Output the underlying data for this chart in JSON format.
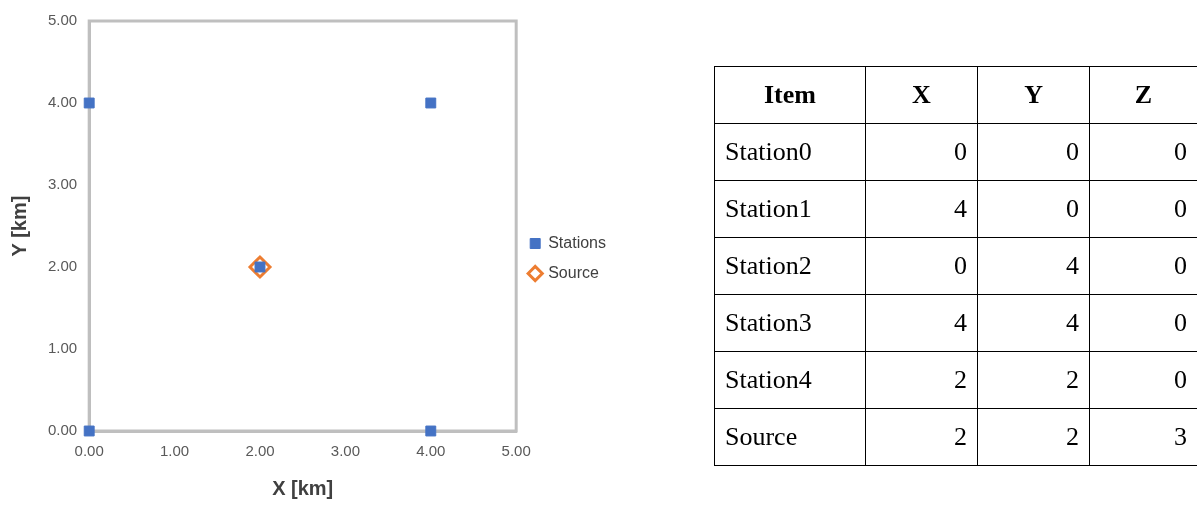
{
  "chart_data": [
    {
      "type": "scatter",
      "xlabel": "X [km]",
      "ylabel": "Y [km]",
      "xlim": [
        0,
        5
      ],
      "ylim": [
        0,
        5
      ],
      "xticks": [
        {
          "value": 0,
          "label": "0.00"
        },
        {
          "value": 1,
          "label": "1.00"
        },
        {
          "value": 2,
          "label": "2.00"
        },
        {
          "value": 3,
          "label": "3.00"
        },
        {
          "value": 4,
          "label": "4.00"
        },
        {
          "value": 5,
          "label": "5.00"
        }
      ],
      "yticks": [
        {
          "value": 0,
          "label": "0.00"
        },
        {
          "value": 1,
          "label": "1.00"
        },
        {
          "value": 2,
          "label": "2.00"
        },
        {
          "value": 3,
          "label": "3.00"
        },
        {
          "value": 4,
          "label": "4.00"
        },
        {
          "value": 5,
          "label": "5.00"
        }
      ],
      "grid": false,
      "legend": "right",
      "series": [
        {
          "name": "Stations",
          "color": "#4472c4",
          "marker": "square",
          "x": [
            0,
            4,
            0,
            4,
            2
          ],
          "values": [
            0,
            0,
            4,
            4,
            2
          ]
        },
        {
          "name": "Source",
          "color": "#ed7d31",
          "marker": "diamond",
          "x": [
            2
          ],
          "values": [
            2
          ]
        }
      ]
    },
    {
      "type": "other",
      "ylabel": "Item",
      "data_labels": true,
      "categories": [
        "Station0",
        "Station1",
        "Station2",
        "Station3",
        "Station4",
        "Source"
      ],
      "series": [
        {
          "name": "X",
          "values": [
            0,
            4,
            0,
            4,
            2,
            2
          ]
        },
        {
          "name": "Y",
          "values": [
            0,
            0,
            4,
            4,
            2,
            2
          ]
        },
        {
          "name": "Z",
          "values": [
            0,
            0,
            0,
            0,
            0,
            3
          ]
        }
      ]
    }
  ]
}
